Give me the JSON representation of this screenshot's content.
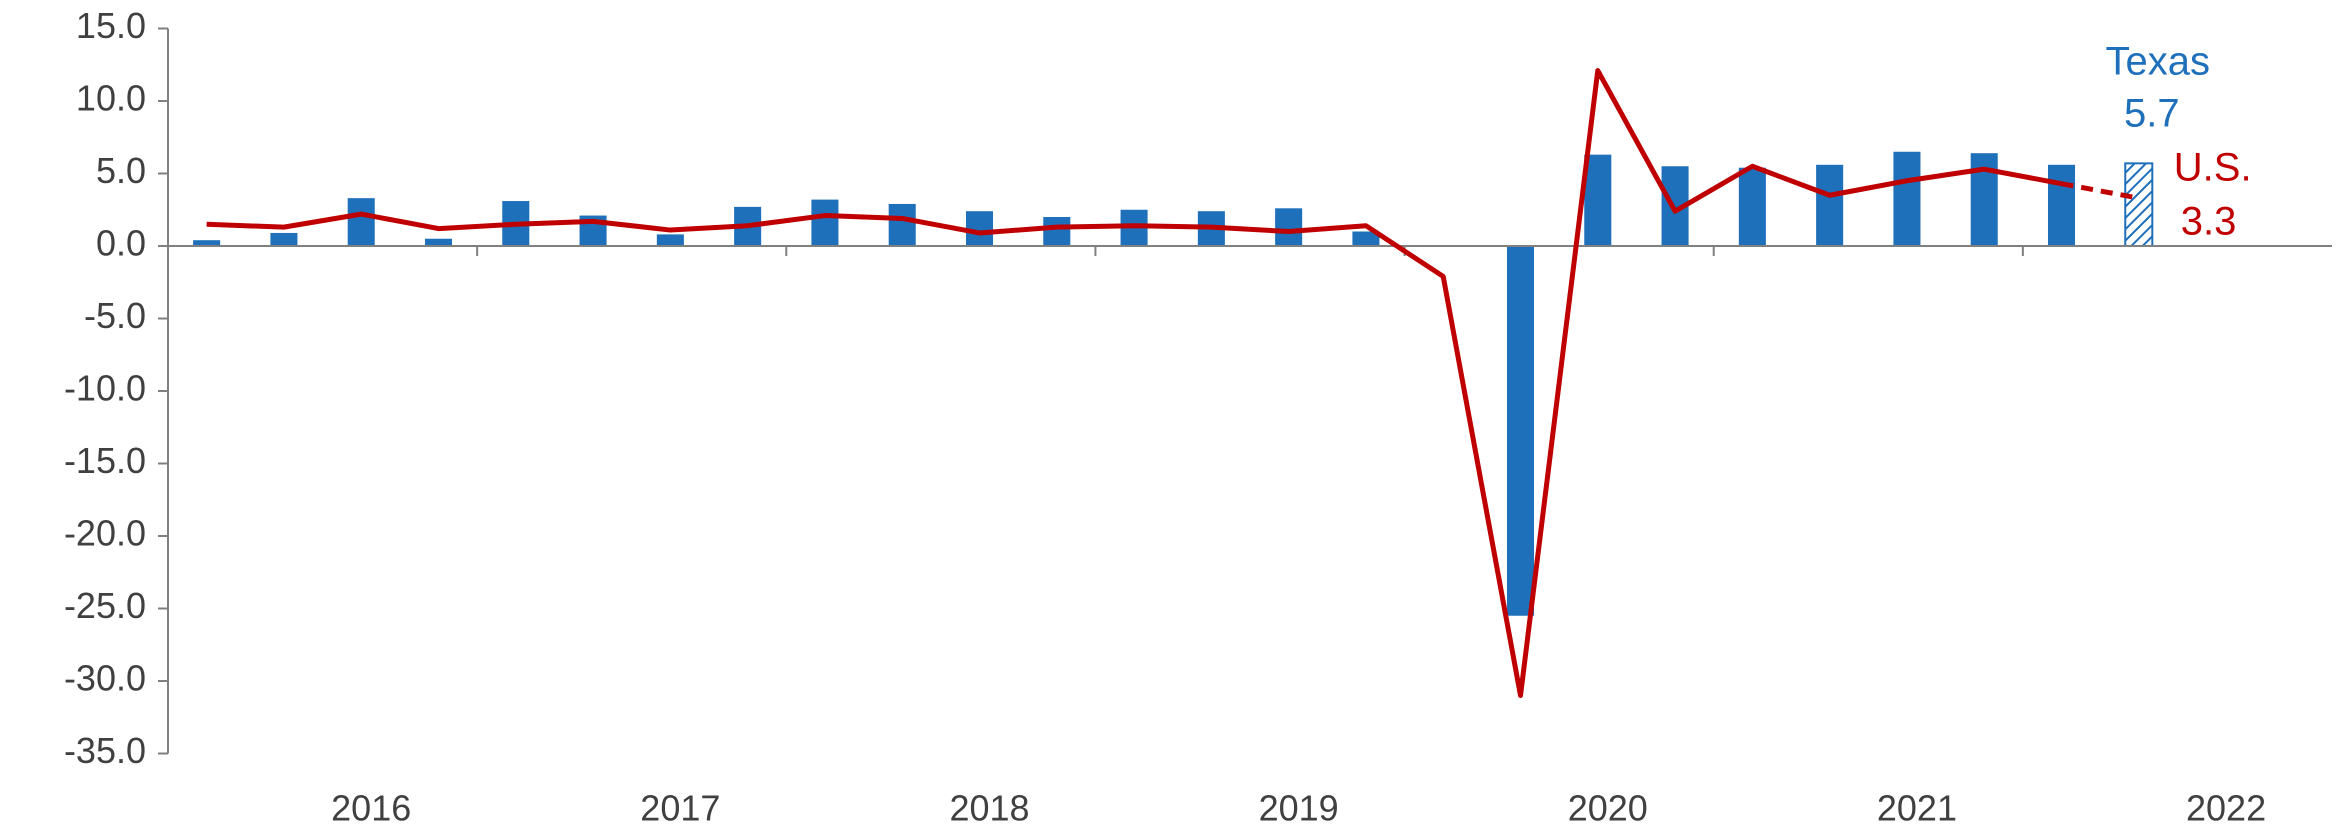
{
  "chart_data": {
    "type": "bar_line",
    "categories": [
      null,
      null,
      "2016",
      null,
      null,
      null,
      "2017",
      null,
      null,
      null,
      "2018",
      null,
      null,
      null,
      "2019",
      null,
      null,
      null,
      "2020",
      null,
      null,
      null,
      "2021",
      null,
      null,
      null,
      "2022",
      null
    ],
    "series": [
      {
        "name": "Texas",
        "type": "bar",
        "color": "#1f70bb",
        "last_bar_hatched": true,
        "values": [
          0.4,
          0.9,
          3.3,
          0.5,
          3.1,
          2.1,
          0.8,
          2.7,
          3.2,
          2.9,
          2.4,
          2.0,
          2.5,
          2.4,
          2.6,
          1.0,
          null,
          -25.5,
          6.3,
          5.5,
          5.4,
          5.6,
          6.5,
          6.4,
          5.6,
          5.7,
          null,
          null
        ]
      },
      {
        "name": "U.S.",
        "type": "line",
        "color": "#c00000",
        "last_segment_dashed": true,
        "values": [
          1.5,
          1.3,
          2.2,
          1.2,
          1.5,
          1.7,
          1.1,
          1.4,
          2.1,
          1.9,
          0.9,
          1.3,
          1.4,
          1.3,
          1.0,
          1.4,
          -2.1,
          -31.0,
          12.1,
          2.4,
          5.5,
          3.5,
          4.5,
          5.3,
          4.3,
          3.3,
          null,
          null
        ]
      }
    ],
    "ylim": [
      -35,
      15
    ],
    "yticks": [
      {
        "value": 15,
        "label": "15.0"
      },
      {
        "value": 10,
        "label": "10.0"
      },
      {
        "value": 5,
        "label": "5.0"
      },
      {
        "value": 0,
        "label": "0.0"
      },
      {
        "value": -5,
        "label": "-5.0"
      },
      {
        "value": -10,
        "label": "-10.0"
      },
      {
        "value": -15,
        "label": "-15.0"
      },
      {
        "value": -20,
        "label": "-20.0"
      },
      {
        "value": -25,
        "label": "-25.0"
      },
      {
        "value": -30,
        "label": "-30.0"
      },
      {
        "value": -35,
        "label": "-35.0"
      }
    ],
    "grid": false
  }
}
